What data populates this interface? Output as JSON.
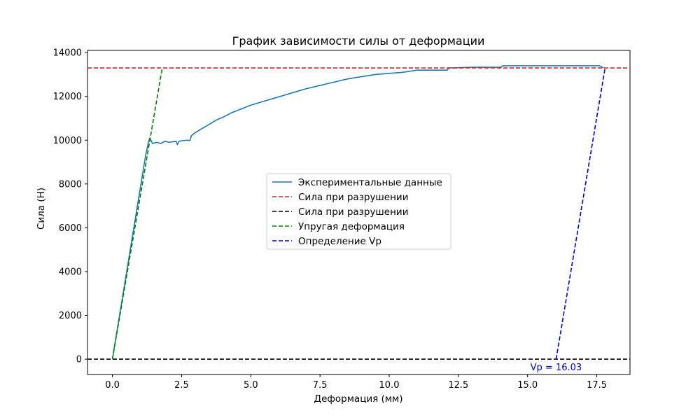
{
  "chart_data": {
    "type": "line",
    "title": "График зависимости силы от деформации",
    "xlabel": "Деформация (мм)",
    "ylabel": "Сила (Н)",
    "xlim": [
      -0.9,
      18.7
    ],
    "ylim": [
      -700,
      14100
    ],
    "x_ticks": [
      0.0,
      2.5,
      5.0,
      7.5,
      10.0,
      12.5,
      15.0,
      17.5
    ],
    "x_tick_labels": [
      "0.0",
      "2.5",
      "5.0",
      "7.5",
      "10.0",
      "12.5",
      "15.0",
      "17.5"
    ],
    "y_ticks": [
      0,
      2000,
      4000,
      6000,
      8000,
      10000,
      12000,
      14000
    ],
    "y_tick_labels": [
      "0",
      "2000",
      "4000",
      "6000",
      "8000",
      "10000",
      "12000",
      "14000"
    ],
    "grid": false,
    "legend_position": "center",
    "series": [
      {
        "name": "Экспериментальные данные",
        "style": "solid",
        "color": "#1f77b4",
        "x": [
          0.0,
          0.2,
          0.4,
          0.6,
          0.8,
          1.0,
          1.2,
          1.3,
          1.35,
          1.45,
          1.6,
          1.75,
          1.9,
          2.05,
          2.2,
          2.3,
          2.35,
          2.4,
          2.55,
          2.7,
          2.8,
          2.85,
          3.0,
          3.2,
          3.4,
          3.6,
          3.8,
          4.0,
          4.3,
          4.6,
          5.0,
          5.4,
          5.8,
          6.2,
          6.6,
          7.0,
          7.5,
          8.0,
          8.5,
          9.0,
          9.5,
          10.0,
          10.5,
          11.0,
          12.1,
          12.15,
          13.0,
          14.05,
          14.1,
          15.0,
          16.0,
          17.0,
          17.6,
          17.75
        ],
        "y": [
          0,
          1550,
          3100,
          4650,
          6200,
          7750,
          9300,
          9900,
          10100,
          9850,
          9900,
          9850,
          9950,
          9900,
          9930,
          9950,
          9800,
          9950,
          9980,
          10000,
          9980,
          10200,
          10350,
          10500,
          10650,
          10800,
          10950,
          11050,
          11250,
          11400,
          11600,
          11750,
          11900,
          12050,
          12200,
          12350,
          12500,
          12650,
          12800,
          12900,
          13000,
          13050,
          13100,
          13200,
          13200,
          13300,
          13330,
          13330,
          13400,
          13400,
          13400,
          13400,
          13400,
          13300
        ]
      },
      {
        "name": "Сила при разрушении",
        "style": "dashed",
        "color": "#d62728",
        "x": [
          -0.9,
          18.7
        ],
        "y": [
          13300,
          13300
        ]
      },
      {
        "name": "Сила при разрушении",
        "style": "dashed",
        "color": "#000000",
        "x": [
          -0.9,
          18.7
        ],
        "y": [
          0,
          0
        ]
      },
      {
        "name": "Упругая деформация",
        "style": "dashed",
        "color": "#008000",
        "x": [
          0.0,
          1.8
        ],
        "y": [
          0,
          13300
        ]
      },
      {
        "name": "Определение Vp",
        "style": "dashed",
        "color": "#0000cc",
        "x": [
          16.03,
          17.8
        ],
        "y": [
          0,
          13300
        ]
      }
    ],
    "annotations": [
      {
        "text": "Vp = 16.03",
        "x": 16.03,
        "y": -350,
        "color": "#0000cc"
      }
    ]
  }
}
